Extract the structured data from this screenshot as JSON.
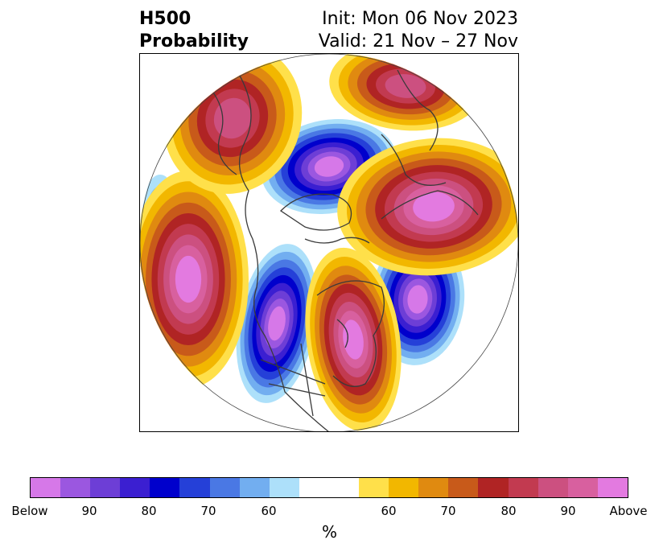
{
  "title": {
    "left_line1": "H500",
    "left_line2": "Probability",
    "right_line1": "Init: Mon 06 Nov 2023",
    "right_line2": "Valid: 21 Nov – 27 Nov"
  },
  "colorbar": {
    "unit": "%",
    "colors": [
      "#d678e8",
      "#9b57e0",
      "#6d3ed6",
      "#3b1fd1",
      "#0000cc",
      "#2540d8",
      "#4a78e4",
      "#72aef0",
      "#ade0fa",
      "#ffffff",
      "#ffe04a",
      "#f2b700",
      "#e08a10",
      "#c85a1a",
      "#b02424",
      "#c23a50",
      "#cc5080",
      "#d8609f",
      "#e37ae0"
    ],
    "tick_labels": [
      "Below",
      "90",
      "80",
      "70",
      "60",
      "60",
      "70",
      "80",
      "90",
      "Above"
    ]
  },
  "map": {
    "projection": "north-polar-stereographic",
    "anomalies": [
      {
        "type": "below",
        "region": "North Pole / Canadian Arctic",
        "level": "90"
      },
      {
        "type": "below",
        "region": "Western North America",
        "level": "90"
      },
      {
        "type": "below",
        "region": "North Atlantic",
        "level": "90"
      },
      {
        "type": "below",
        "region": "Northwest Pacific",
        "level": "60"
      },
      {
        "type": "above",
        "region": "Eastern North America",
        "level": "90"
      },
      {
        "type": "above",
        "region": "North Pacific",
        "level": "90"
      },
      {
        "type": "above",
        "region": "Eastern Siberia",
        "level": "80"
      },
      {
        "type": "above",
        "region": "Western Siberia",
        "level": "80"
      },
      {
        "type": "above",
        "region": "Europe / Scandinavia",
        "level": "90"
      }
    ]
  }
}
